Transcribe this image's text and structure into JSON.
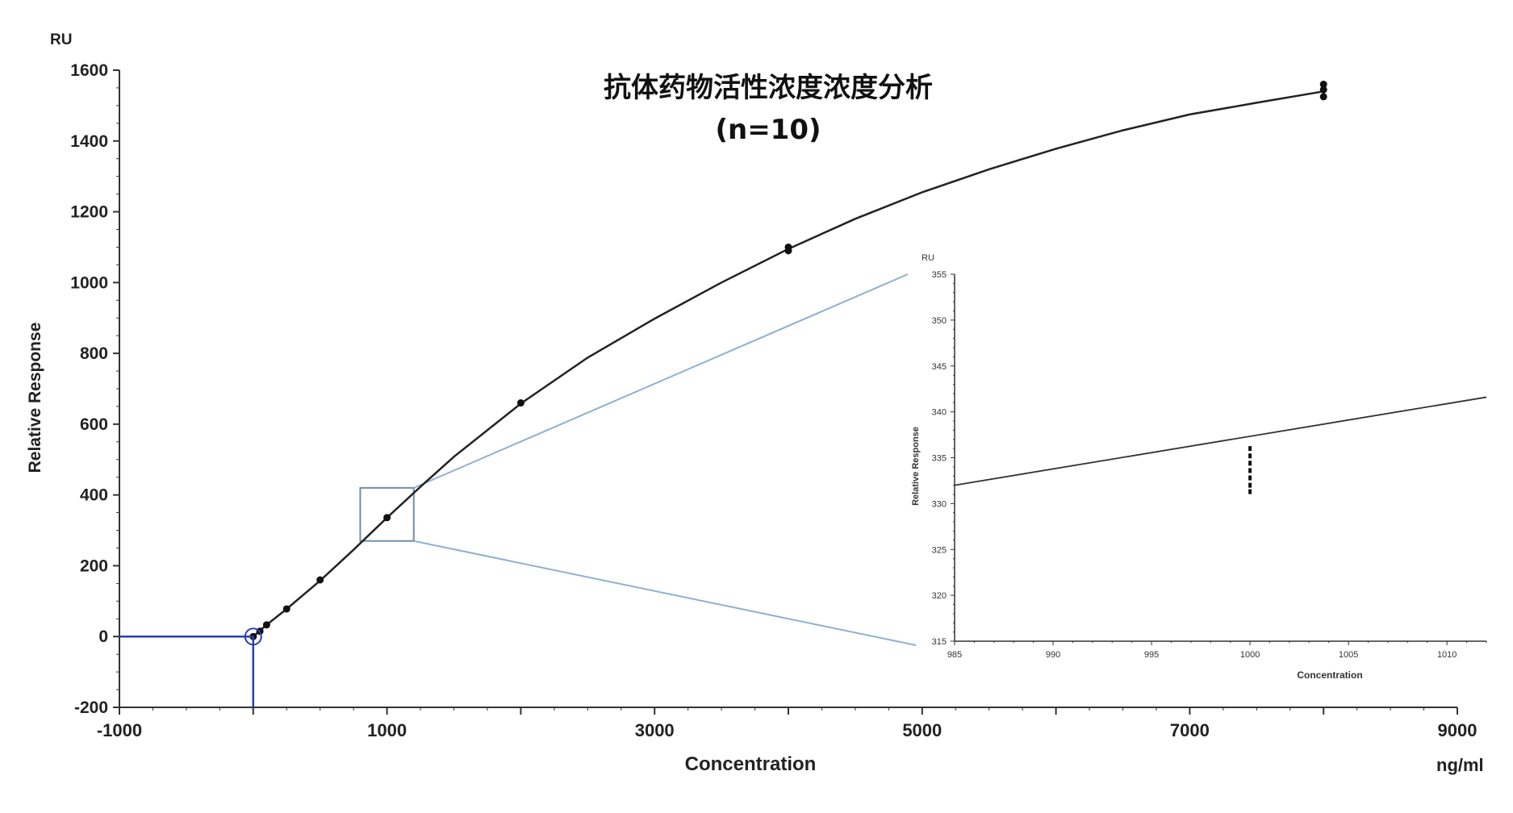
{
  "chart_data": {
    "type": "line",
    "title": "抗体药物活性浓度浓度分析",
    "subtitle": "(n=10)",
    "xlabel": "Concentration",
    "ylabel": "Relative Response",
    "x_unit": "ng/ml",
    "y_unit": "RU",
    "xlim": [
      -1000,
      9000
    ],
    "ylim": [
      -200,
      1600
    ],
    "x_ticks": [
      "-1000",
      "1000",
      "3000",
      "5000",
      "7000",
      "9000"
    ],
    "y_ticks": [
      "-200",
      "0",
      "200",
      "400",
      "600",
      "800",
      "1000",
      "1200",
      "1400",
      "1600"
    ],
    "grid": false,
    "series": [
      {
        "kind": "fit-curve",
        "x": [
          0,
          100,
          250,
          500,
          750,
          1000,
          1250,
          1500,
          2000,
          2500,
          3000,
          3500,
          4000,
          4500,
          5000,
          5500,
          6000,
          6500,
          7000,
          7500,
          8000
        ],
        "y": [
          0,
          33,
          78,
          158,
          245,
          336,
          423,
          508,
          658,
          788,
          898,
          1000,
          1095,
          1180,
          1255,
          1320,
          1378,
          1430,
          1475,
          1508,
          1540
        ]
      },
      {
        "kind": "points",
        "x": [
          0,
          50,
          100,
          250,
          500,
          1000,
          2000,
          4000,
          4000,
          8000,
          8000,
          8000
        ],
        "y": [
          0,
          15,
          33,
          78,
          160,
          336,
          660,
          1090,
          1100,
          1525,
          1545,
          1560
        ]
      }
    ],
    "lod_marker": {
      "x": 0,
      "y": 0
    },
    "zoom_box": {
      "xlim": [
        800,
        1200
      ],
      "ylim": [
        270,
        420
      ]
    },
    "inset": {
      "xlabel": "Concentration",
      "ylabel": "Relative Response",
      "y_unit": "RU",
      "xlim": [
        985,
        1012
      ],
      "ylim": [
        315,
        355
      ],
      "x_ticks": [
        "985",
        "990",
        "995",
        "1000",
        "1005",
        "1010"
      ],
      "y_ticks": [
        "315",
        "320",
        "325",
        "330",
        "335",
        "340",
        "345",
        "350",
        "355"
      ],
      "line": {
        "x": [
          985,
          1012
        ],
        "y": [
          332,
          341.6
        ]
      },
      "points": {
        "x": [
          1000,
          1000,
          1000,
          1000,
          1000,
          1000,
          1000
        ],
        "y": [
          331.3,
          332,
          332.8,
          333.6,
          334.4,
          335.2,
          336
        ]
      }
    }
  }
}
